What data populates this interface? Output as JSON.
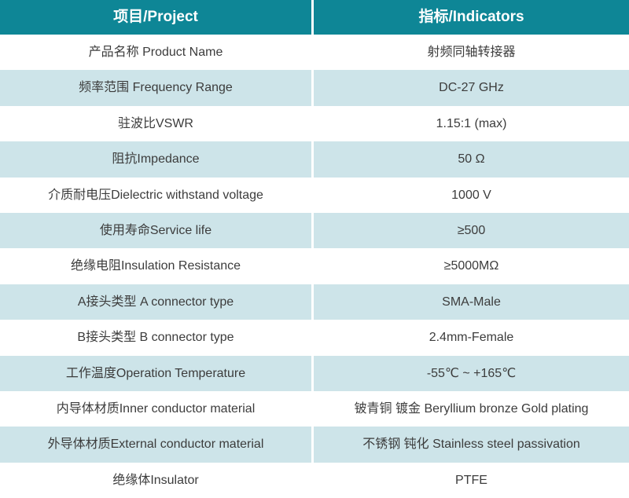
{
  "header": {
    "project": "项目/Project",
    "indicators": "指标/Indicators"
  },
  "rows": [
    {
      "project": "产品名称 Product Name",
      "indicator": "射频同轴转接器"
    },
    {
      "project": "频率范围 Frequency Range",
      "indicator": "DC-27 GHz"
    },
    {
      "project": "驻波比VSWR",
      "indicator": "1.15:1 (max)"
    },
    {
      "project": "阻抗Impedance",
      "indicator": "50 Ω"
    },
    {
      "project": "介质耐电压Dielectric withstand voltage",
      "indicator": "1000 V"
    },
    {
      "project": "使用寿命Service life",
      "indicator": "≥500"
    },
    {
      "project": "绝缘电阻Insulation Resistance",
      "indicator": "≥5000MΩ"
    },
    {
      "project": "A接头类型 A connector type",
      "indicator": "SMA-Male"
    },
    {
      "project": "B接头类型 B connector type",
      "indicator": "2.4mm-Female"
    },
    {
      "project": "工作温度Operation Temperature",
      "indicator": "-55℃ ~ +165℃"
    },
    {
      "project": "内导体材质Inner conductor material",
      "indicator": "铍青铜 镀金 Beryllium bronze Gold plating"
    },
    {
      "project": "外导体材质External conductor material",
      "indicator": "不锈钢 钝化 Stainless steel passivation"
    },
    {
      "project": "绝缘体Insulator",
      "indicator": "PTFE"
    }
  ],
  "colors": {
    "header_bg": "#0e8696",
    "header_text": "#ffffff",
    "row_alt_bg": "#cde4e9",
    "row_bg": "#ffffff",
    "cell_text": "#3c3c3c",
    "divider": "#ffffff"
  }
}
